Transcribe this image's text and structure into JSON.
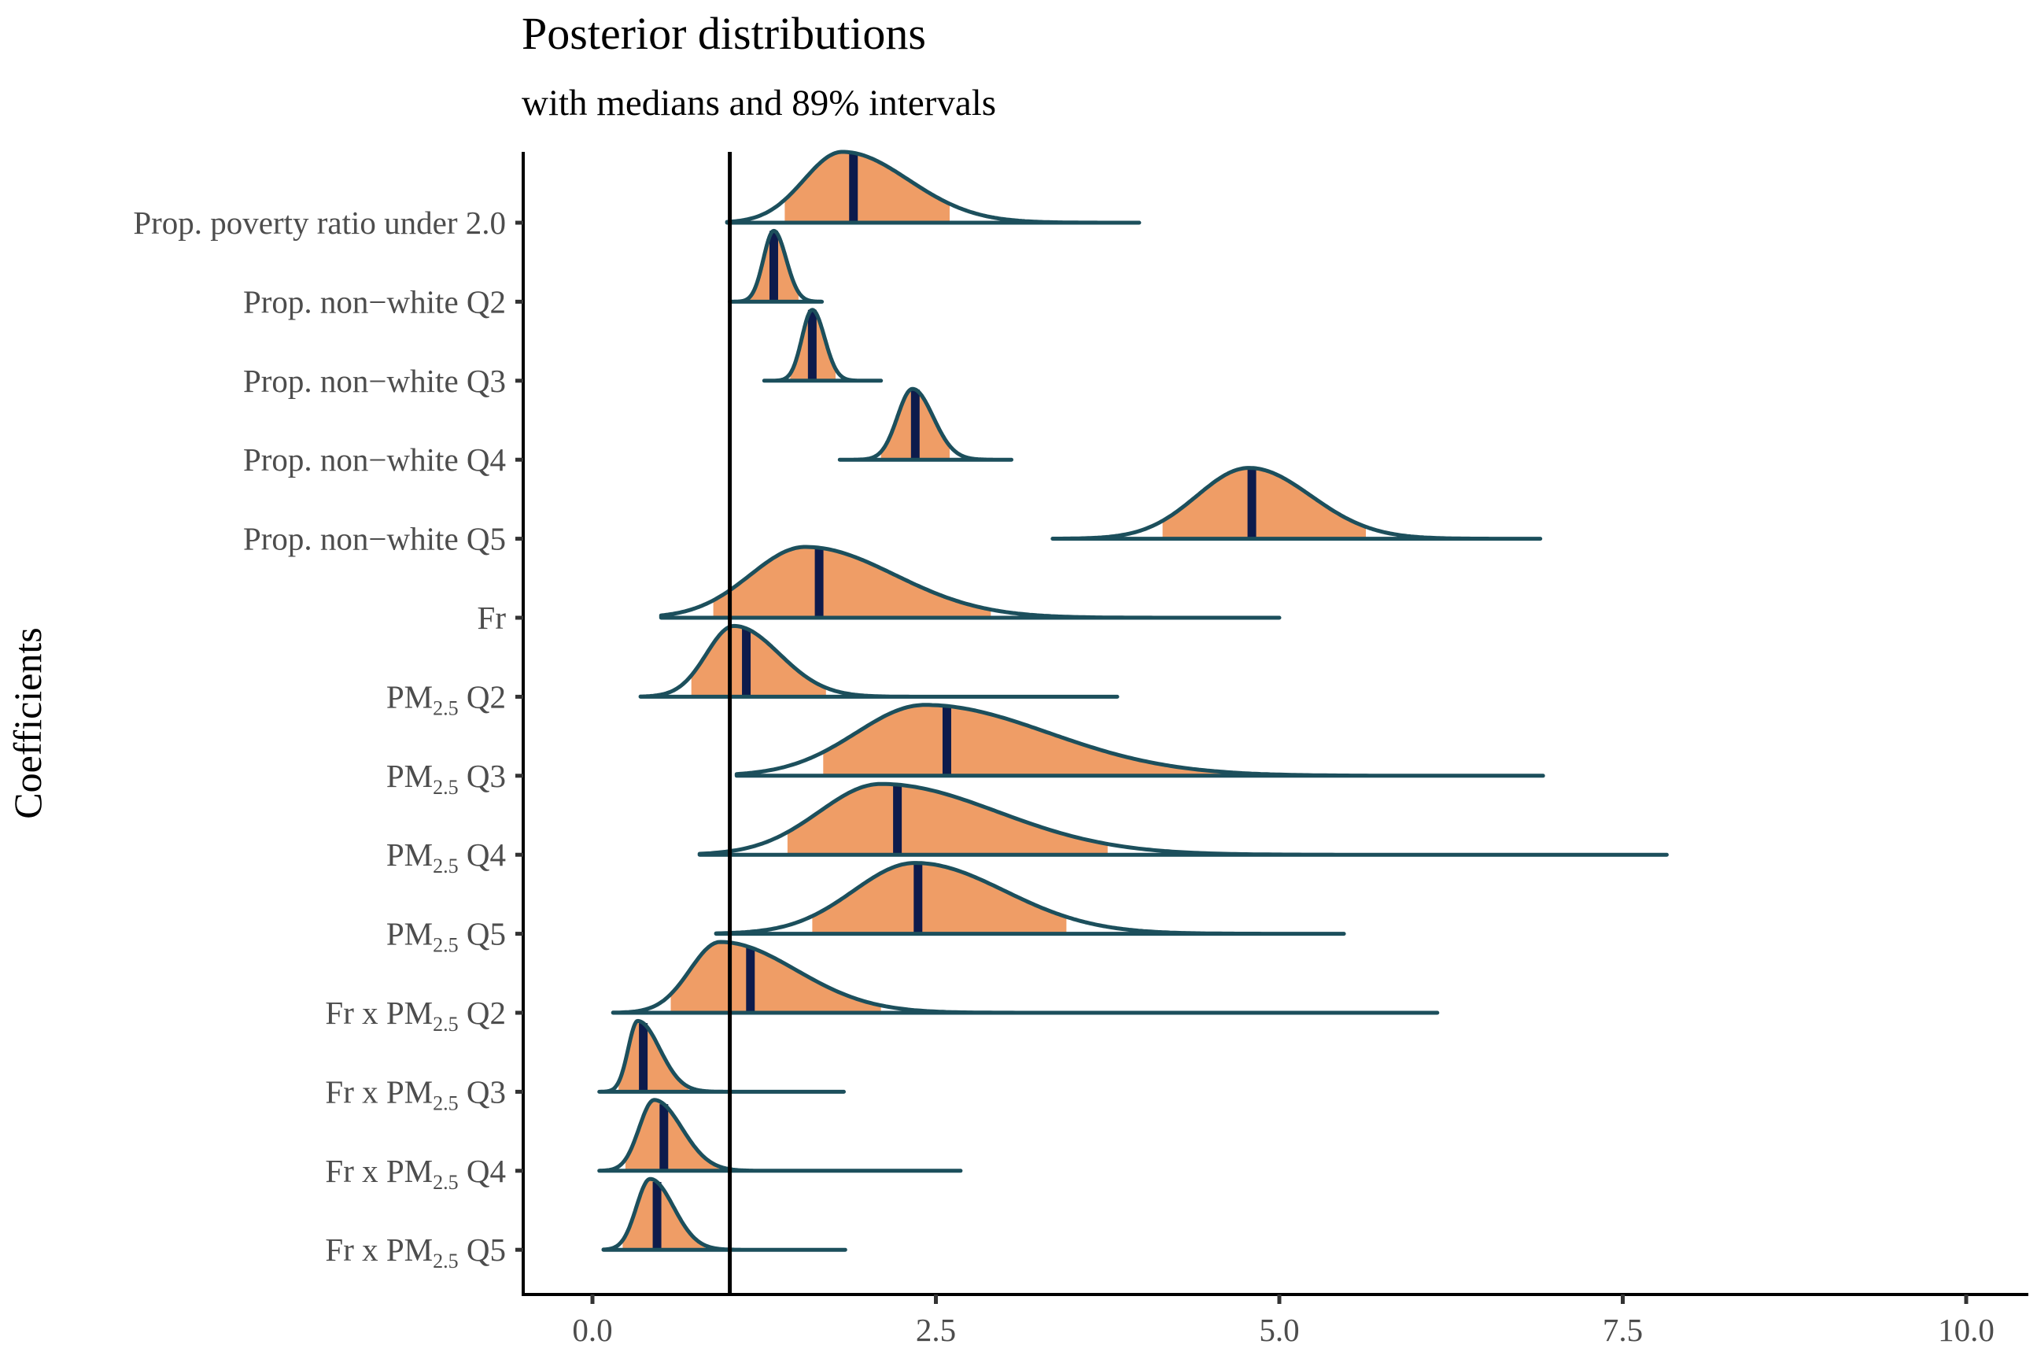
{
  "chart_data": {
    "type": "ridgeline",
    "title": "Posterior distributions",
    "subtitle": "with medians and 89% intervals",
    "xlabel": "",
    "ylabel": "Coefficients",
    "xlim": [
      -0.45,
      10.55
    ],
    "x_ticks": [
      0.0,
      2.5,
      5.0,
      7.5,
      10.0
    ],
    "x_tick_labels": [
      "0.0",
      "2.5",
      "5.0",
      "7.5",
      "10.0"
    ],
    "reference_line": 1.0,
    "colors": {
      "fill": "#ef9d66",
      "outline": "#1c4f5c",
      "median": "#0d1b4c",
      "axis": "#000000",
      "tick_text": "#4d4d4d"
    },
    "series": [
      {
        "label": "Prop. poverty ratio under 2.0",
        "label_main": "Prop. poverty ratio under 2.0",
        "median": 1.9,
        "ci": [
          1.4,
          2.6
        ],
        "range": [
          0.98,
          3.98
        ],
        "mode": 1.82,
        "sd_left": 0.28,
        "sd_right": 0.48
      },
      {
        "label": "Prop. non-white Q2",
        "label_main": "Prop. non−white Q2",
        "median": 1.32,
        "ci": [
          1.14,
          1.5
        ],
        "range": [
          1.0,
          1.67
        ],
        "mode": 1.32,
        "sd_left": 0.075,
        "sd_right": 0.09
      },
      {
        "label": "Prop. non-white Q3",
        "label_main": "Prop. non−white Q3",
        "median": 1.6,
        "ci": [
          1.44,
          1.77
        ],
        "range": [
          1.25,
          2.1
        ],
        "mode": 1.6,
        "sd_left": 0.075,
        "sd_right": 0.09
      },
      {
        "label": "Prop. non-white Q4",
        "label_main": "Prop. non−white Q4",
        "median": 2.35,
        "ci": [
          2.1,
          2.6
        ],
        "range": [
          1.8,
          3.05
        ],
        "mode": 2.33,
        "sd_left": 0.11,
        "sd_right": 0.15
      },
      {
        "label": "Prop. non-white Q5",
        "label_main": "Prop. non−white Q5",
        "median": 4.8,
        "ci": [
          4.15,
          5.63
        ],
        "range": [
          3.35,
          6.9
        ],
        "mode": 4.78,
        "sd_left": 0.38,
        "sd_right": 0.45
      },
      {
        "label": "Fr",
        "label_main": "Fr",
        "median": 1.65,
        "ci": [
          0.88,
          2.9
        ],
        "range": [
          0.5,
          5.0
        ],
        "mode": 1.55,
        "sd_left": 0.4,
        "sd_right": 0.65
      },
      {
        "label": "PM2.5 Q2",
        "label_main": "PM",
        "label_sub": "2.5",
        "label_tail": " Q2",
        "median": 1.12,
        "ci": [
          0.72,
          1.7
        ],
        "range": [
          0.35,
          3.82
        ],
        "mode": 1.03,
        "sd_left": 0.2,
        "sd_right": 0.33
      },
      {
        "label": "PM2.5 Q3",
        "label_main": "PM",
        "label_sub": "2.5",
        "label_tail": " Q3",
        "median": 2.58,
        "ci": [
          1.68,
          4.72
        ],
        "range": [
          1.05,
          6.92
        ],
        "mode": 2.42,
        "sd_left": 0.5,
        "sd_right": 0.9
      },
      {
        "label": "PM2.5 Q4",
        "label_main": "PM",
        "label_sub": "2.5",
        "label_tail": " Q4",
        "median": 2.22,
        "ci": [
          1.42,
          3.75
        ],
        "range": [
          0.78,
          7.82
        ],
        "mode": 2.1,
        "sd_left": 0.45,
        "sd_right": 0.85
      },
      {
        "label": "PM2.5 Q5",
        "label_main": "PM",
        "label_sub": "2.5",
        "label_tail": " Q5",
        "median": 2.37,
        "ci": [
          1.6,
          3.45
        ],
        "range": [
          0.9,
          5.47
        ],
        "mode": 2.35,
        "sd_left": 0.45,
        "sd_right": 0.65
      },
      {
        "label": "Fr x PM2.5 Q2",
        "label_main": "Fr x  PM",
        "label_sub": "2.5",
        "label_tail": " Q2",
        "median": 1.15,
        "ci": [
          0.57,
          2.1
        ],
        "range": [
          0.15,
          6.15
        ],
        "mode": 0.93,
        "sd_left": 0.22,
        "sd_right": 0.55
      },
      {
        "label": "Fr x PM2.5 Q3",
        "label_main": "Fr x  PM",
        "label_sub": "2.5",
        "label_tail": " Q3",
        "median": 0.37,
        "ci": [
          0.19,
          0.7
        ],
        "range": [
          0.05,
          1.83
        ],
        "mode": 0.33,
        "sd_left": 0.07,
        "sd_right": 0.16
      },
      {
        "label": "Fr x PM2.5 Q4",
        "label_main": "Fr x  PM",
        "label_sub": "2.5",
        "label_tail": " Q4",
        "median": 0.52,
        "ci": [
          0.24,
          0.92
        ],
        "range": [
          0.05,
          2.68
        ],
        "mode": 0.45,
        "sd_left": 0.11,
        "sd_right": 0.2
      },
      {
        "label": "Fr x PM2.5 Q5",
        "label_main": "Fr x  PM",
        "label_sub": "2.5",
        "label_tail": " Q5",
        "median": 0.47,
        "ci": [
          0.22,
          0.82
        ],
        "range": [
          0.08,
          1.84
        ],
        "mode": 0.42,
        "sd_left": 0.1,
        "sd_right": 0.17
      }
    ]
  }
}
